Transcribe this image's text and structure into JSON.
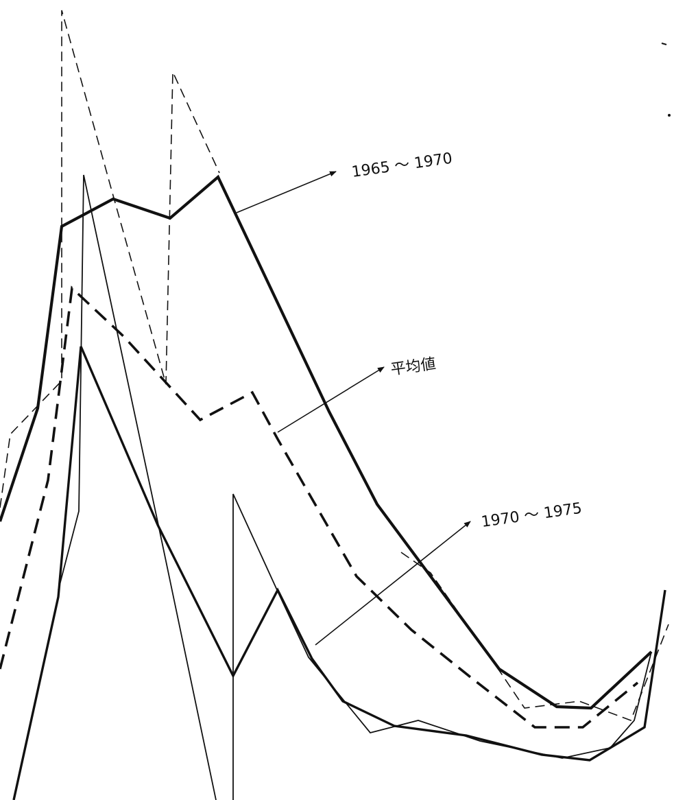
{
  "chart_data": {
    "type": "line",
    "title": "",
    "xlabel": "",
    "ylabel": "",
    "grid": false,
    "legend": "none",
    "annotations": [
      {
        "text": "1965 ～ 1970",
        "target": "thick-solid",
        "arrow": "up-right"
      },
      {
        "text": "平均値",
        "target": "thick-dashed",
        "arrow": "up-right"
      },
      {
        "text": "1970 ～ 1975",
        "target": "lower-solid",
        "arrow": "up-right"
      }
    ],
    "series": [
      {
        "style": "thick-solid",
        "points": [
          [
            0,
            760
          ],
          [
            55,
            595
          ],
          [
            90,
            330
          ],
          [
            165,
            290
          ],
          [
            248,
            318
          ],
          [
            318,
            258
          ],
          [
            480,
            600
          ],
          [
            550,
            735
          ],
          [
            628,
            840
          ],
          [
            728,
            975
          ],
          [
            812,
            1030
          ],
          [
            862,
            1032
          ],
          [
            950,
            950
          ]
        ]
      },
      {
        "style": "thick-dashed",
        "points": [
          [
            0,
            975
          ],
          [
            70,
            700
          ],
          [
            105,
            420
          ],
          [
            180,
            490
          ],
          [
            292,
            612
          ],
          [
            368,
            572
          ],
          [
            405,
            640
          ],
          [
            520,
            840
          ],
          [
            600,
            918
          ],
          [
            690,
            990
          ],
          [
            780,
            1060
          ],
          [
            850,
            1060
          ],
          [
            930,
            995
          ]
        ]
      },
      {
        "style": "lower-solid",
        "points": [
          [
            20,
            1166
          ],
          [
            85,
            870
          ],
          [
            118,
            505
          ],
          [
            230,
            765
          ],
          [
            340,
            985
          ],
          [
            405,
            860
          ],
          [
            455,
            960
          ],
          [
            500,
            1022
          ],
          [
            575,
            1058
          ],
          [
            680,
            1072
          ],
          [
            790,
            1100
          ],
          [
            860,
            1108
          ],
          [
            940,
            1060
          ],
          [
            970,
            860
          ]
        ]
      },
      {
        "style": "thin-dashed",
        "points": [
          [
            0,
            740
          ],
          [
            15,
            633
          ],
          [
            90,
            555
          ],
          [
            90,
            15
          ],
          [
            165,
            285
          ],
          [
            242,
            560
          ],
          [
            252,
            105
          ],
          [
            320,
            252
          ]
        ]
      },
      {
        "style": "thin-dashed",
        "points": [
          [
            585,
            805
          ],
          [
            628,
            835
          ],
          [
            730,
            980
          ],
          [
            765,
            1032
          ],
          [
            845,
            1022
          ],
          [
            920,
            1050
          ],
          [
            975,
            910
          ]
        ]
      },
      {
        "style": "thin-solid",
        "points": [
          [
            85,
            860
          ],
          [
            115,
            745
          ],
          [
            122,
            255
          ],
          [
            232,
            770
          ],
          [
            315,
            1166
          ]
        ]
      },
      {
        "style": "thin-solid",
        "points": [
          [
            340,
            1166
          ],
          [
            340,
            720
          ],
          [
            405,
            862
          ],
          [
            450,
            958
          ],
          [
            540,
            1068
          ],
          [
            610,
            1050
          ],
          [
            700,
            1080
          ],
          [
            820,
            1105
          ],
          [
            890,
            1090
          ],
          [
            925,
            1050
          ],
          [
            950,
            950
          ]
        ]
      }
    ],
    "marks": [
      "tick-short",
      "dot"
    ]
  }
}
